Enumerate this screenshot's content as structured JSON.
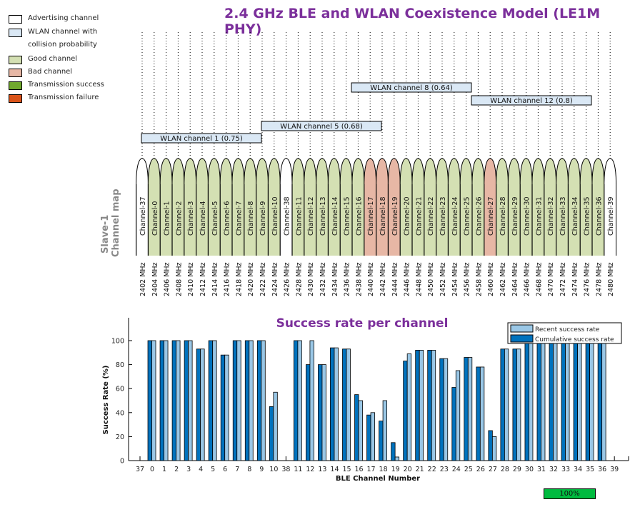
{
  "title": "2.4 GHz BLE and WLAN Coexistence Model (LE1M PHY)",
  "legend": [
    {
      "label": "Advertising channel",
      "color": "#ffffff"
    },
    {
      "label": "WLAN channel with collision probability",
      "color": "#dae8f5"
    },
    {
      "label": "Good channel",
      "color": "#d4e0b3"
    },
    {
      "label": "Bad channel",
      "color": "#e7b7a5"
    },
    {
      "label": "Transmission success",
      "color": "#70a82e"
    },
    {
      "label": "Transmission failure",
      "color": "#d95319"
    }
  ],
  "channel_map": {
    "ylabel_line1": "Slave-1",
    "ylabel_line2": "Channel map",
    "channels": [
      {
        "id": 37,
        "freq": "2402 MHz",
        "type": "adv"
      },
      {
        "id": 0,
        "freq": "2404 MHz",
        "type": "good"
      },
      {
        "id": 1,
        "freq": "2406 MHz",
        "type": "good"
      },
      {
        "id": 2,
        "freq": "2408 MHz",
        "type": "good"
      },
      {
        "id": 3,
        "freq": "2410 MHz",
        "type": "good"
      },
      {
        "id": 4,
        "freq": "2412 MHz",
        "type": "good"
      },
      {
        "id": 5,
        "freq": "2414 MHz",
        "type": "good"
      },
      {
        "id": 6,
        "freq": "2416 MHz",
        "type": "good"
      },
      {
        "id": 7,
        "freq": "2418 MHz",
        "type": "good"
      },
      {
        "id": 8,
        "freq": "2420 MHz",
        "type": "good"
      },
      {
        "id": 9,
        "freq": "2422 MHz",
        "type": "good"
      },
      {
        "id": 10,
        "freq": "2424 MHz",
        "type": "good"
      },
      {
        "id": 38,
        "freq": "2426 MHz",
        "type": "adv"
      },
      {
        "id": 11,
        "freq": "2428 MHz",
        "type": "good"
      },
      {
        "id": 12,
        "freq": "2430 MHz",
        "type": "good"
      },
      {
        "id": 13,
        "freq": "2432 MHz",
        "type": "good"
      },
      {
        "id": 14,
        "freq": "2434 MHz",
        "type": "good"
      },
      {
        "id": 15,
        "freq": "2436 MHz",
        "type": "good"
      },
      {
        "id": 16,
        "freq": "2438 MHz",
        "type": "good"
      },
      {
        "id": 17,
        "freq": "2440 MHz",
        "type": "bad"
      },
      {
        "id": 18,
        "freq": "2442 MHz",
        "type": "bad"
      },
      {
        "id": 19,
        "freq": "2444 MHz",
        "type": "bad"
      },
      {
        "id": 20,
        "freq": "2446 MHz",
        "type": "good"
      },
      {
        "id": 21,
        "freq": "2448 MHz",
        "type": "good"
      },
      {
        "id": 22,
        "freq": "2450 MHz",
        "type": "good"
      },
      {
        "id": 23,
        "freq": "2452 MHz",
        "type": "good"
      },
      {
        "id": 24,
        "freq": "2454 MHz",
        "type": "good"
      },
      {
        "id": 25,
        "freq": "2456 MHz",
        "type": "good"
      },
      {
        "id": 26,
        "freq": "2458 MHz",
        "type": "good"
      },
      {
        "id": 27,
        "freq": "2460 MHz",
        "type": "bad"
      },
      {
        "id": 28,
        "freq": "2462 MHz",
        "type": "good"
      },
      {
        "id": 29,
        "freq": "2464 MHz",
        "type": "good"
      },
      {
        "id": 30,
        "freq": "2466 MHz",
        "type": "good"
      },
      {
        "id": 31,
        "freq": "2468 MHz",
        "type": "good"
      },
      {
        "id": 32,
        "freq": "2470 MHz",
        "type": "good"
      },
      {
        "id": 33,
        "freq": "2472 MHz",
        "type": "good"
      },
      {
        "id": 34,
        "freq": "2474 MHz",
        "type": "good"
      },
      {
        "id": 35,
        "freq": "2476 MHz",
        "type": "good"
      },
      {
        "id": 36,
        "freq": "2478 MHz",
        "type": "good"
      },
      {
        "id": 39,
        "freq": "2480 MHz",
        "type": "adv"
      }
    ],
    "channel_prefix": "Channel-",
    "wlan": [
      {
        "label": "WLAN channel 1 (0.75)",
        "start_mhz": 2402,
        "end_mhz": 2422,
        "level": 0
      },
      {
        "label": "WLAN channel 5 (0.68)",
        "start_mhz": 2422,
        "end_mhz": 2442,
        "level": 1
      },
      {
        "label": "WLAN channel 8 (0.64)",
        "start_mhz": 2437,
        "end_mhz": 2457,
        "level": 3
      },
      {
        "label": "WLAN channel 12 (0.8)",
        "start_mhz": 2457,
        "end_mhz": 2477,
        "level": 2
      }
    ]
  },
  "chart_data": {
    "type": "bar",
    "title": "Success rate per channel",
    "xlabel": "BLE Channel Number",
    "ylabel": "Success Rate (%)",
    "ylim": [
      0,
      110
    ],
    "yticks": [
      0,
      20,
      40,
      60,
      80,
      100
    ],
    "legend_position": "top-right",
    "categories": [
      "37",
      "0",
      "1",
      "2",
      "3",
      "4",
      "5",
      "6",
      "7",
      "8",
      "9",
      "10",
      "38",
      "11",
      "12",
      "13",
      "14",
      "15",
      "16",
      "17",
      "18",
      "19",
      "20",
      "21",
      "22",
      "23",
      "24",
      "25",
      "26",
      "27",
      "28",
      "29",
      "30",
      "31",
      "32",
      "33",
      "34",
      "35",
      "36",
      "39"
    ],
    "series": [
      {
        "name": "Cumulative success rate",
        "color": "#0072bd",
        "values": [
          null,
          100,
          100,
          100,
          100,
          93,
          100,
          88,
          100,
          100,
          100,
          45,
          null,
          100,
          80,
          80,
          94,
          93,
          55,
          38,
          33,
          15,
          83,
          92,
          92,
          85,
          61,
          86,
          78,
          25,
          93,
          93,
          100,
          100,
          100,
          100,
          100,
          100,
          100,
          null
        ]
      },
      {
        "name": "Recent success rate",
        "color": "#9ac7e6",
        "values": [
          null,
          100,
          100,
          100,
          100,
          93,
          100,
          88,
          100,
          100,
          100,
          57,
          null,
          100,
          100,
          80,
          94,
          93,
          50,
          40,
          50,
          3,
          89,
          92,
          92,
          85,
          75,
          86,
          78,
          20,
          93,
          93,
          100,
          100,
          100,
          100,
          100,
          100,
          100,
          null
        ]
      }
    ]
  },
  "progress": {
    "label": "100%",
    "value": 100
  }
}
